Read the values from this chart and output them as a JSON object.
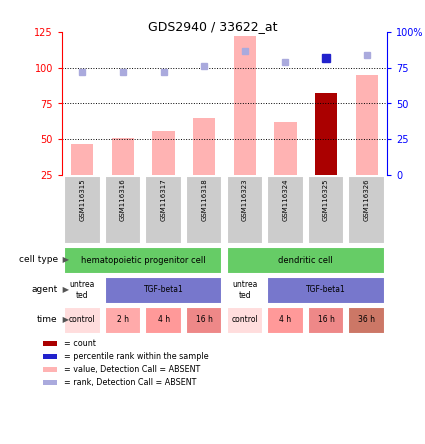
{
  "title": "GDS2940 / 33622_at",
  "samples": [
    "GSM116315",
    "GSM116316",
    "GSM116317",
    "GSM116318",
    "GSM116323",
    "GSM116324",
    "GSM116325",
    "GSM116326"
  ],
  "bar_values": [
    47,
    51,
    56,
    65,
    122,
    62,
    82,
    95
  ],
  "bar_colors": [
    "#ffb3b3",
    "#ffb3b3",
    "#ffb3b3",
    "#ffb3b3",
    "#ffb3b3",
    "#ffb3b3",
    "#aa0000",
    "#ffb3b3"
  ],
  "rank_dots": [
    72,
    72,
    72,
    76,
    87,
    79,
    82,
    84
  ],
  "rank_dot_colors": [
    "#aaaadd",
    "#aaaadd",
    "#aaaadd",
    "#aaaadd",
    "#aaaadd",
    "#aaaadd",
    "#2222cc",
    "#aaaadd"
  ],
  "ylim_left": [
    25,
    125
  ],
  "ylim_right": [
    0,
    100
  ],
  "yticks_left": [
    25,
    50,
    75,
    100,
    125
  ],
  "yticks_right": [
    0,
    25,
    50,
    75,
    100
  ],
  "ytick_labels_right": [
    "0",
    "25",
    "50",
    "75",
    "100%"
  ],
  "dotted_lines": [
    50,
    75,
    100
  ],
  "cell_type_color": "#66cc66",
  "agent_color_untreated": "#ffffff",
  "agent_color_treated": "#7777cc",
  "time_colors": [
    "#ffdddd",
    "#ffaaaa",
    "#ff9999",
    "#ee8888",
    "#ffdddd",
    "#ff9999",
    "#ee8888",
    "#cc7766"
  ],
  "legend_items": [
    {
      "color": "#aa0000",
      "label": "count"
    },
    {
      "color": "#2222cc",
      "label": "percentile rank within the sample"
    },
    {
      "color": "#ffb3b3",
      "label": "value, Detection Call = ABSENT"
    },
    {
      "color": "#aaaadd",
      "label": "rank, Detection Call = ABSENT"
    }
  ]
}
